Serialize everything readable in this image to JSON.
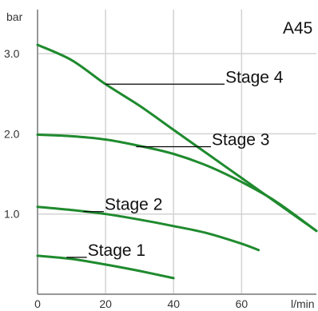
{
  "chart_data": {
    "type": "line",
    "title": "A45",
    "ylabel": "bar",
    "xlabel": "l/min",
    "xlim": [
      0,
      82
    ],
    "ylim": [
      0,
      3.55
    ],
    "x_ticks": [
      0,
      20,
      40,
      60
    ],
    "y_ticks": [
      1.0,
      2.0,
      3.0
    ],
    "x_tick_labels": [
      "0",
      "20",
      "40",
      "60"
    ],
    "y_tick_labels": [
      "1.0",
      "2.0",
      "3.0"
    ],
    "grid": true,
    "colors": {
      "curve": "#1f8a2e",
      "grid": "#d3d3d3",
      "axis": "#777777",
      "leader": "#000000"
    },
    "series": [
      {
        "name": "Stage 1",
        "x": [
          0,
          10,
          20,
          30,
          40
        ],
        "y": [
          0.48,
          0.44,
          0.37,
          0.29,
          0.2
        ]
      },
      {
        "name": "Stage 2",
        "x": [
          0,
          10,
          20,
          30,
          40,
          50,
          60,
          65
        ],
        "y": [
          1.09,
          1.05,
          1.0,
          0.93,
          0.85,
          0.76,
          0.63,
          0.55
        ]
      },
      {
        "name": "Stage 3",
        "x": [
          0,
          10,
          20,
          30,
          40,
          50,
          60,
          70,
          82
        ],
        "y": [
          1.99,
          1.97,
          1.93,
          1.85,
          1.75,
          1.6,
          1.4,
          1.16,
          0.79
        ]
      },
      {
        "name": "Stage 4",
        "x": [
          0,
          10,
          20,
          30,
          40,
          50,
          60,
          70,
          82
        ],
        "y": [
          3.11,
          2.92,
          2.62,
          2.35,
          2.05,
          1.75,
          1.45,
          1.15,
          0.79
        ]
      }
    ],
    "annotations": [
      {
        "text": "Stage 4",
        "series": "Stage 4",
        "x_from": 20,
        "x_to": 55,
        "y": 2.62
      },
      {
        "text": "Stage 3",
        "series": "Stage 3",
        "x_from": 29,
        "x_to": 51,
        "y": 1.84
      },
      {
        "text": "Stage 2",
        "series": "Stage 2",
        "x_from": 13.5,
        "x_to": 19.5,
        "y": 1.03
      },
      {
        "text": "Stage 1",
        "series": "Stage 1",
        "x_from": 8.5,
        "x_to": 14.5,
        "y": 0.46
      }
    ]
  }
}
